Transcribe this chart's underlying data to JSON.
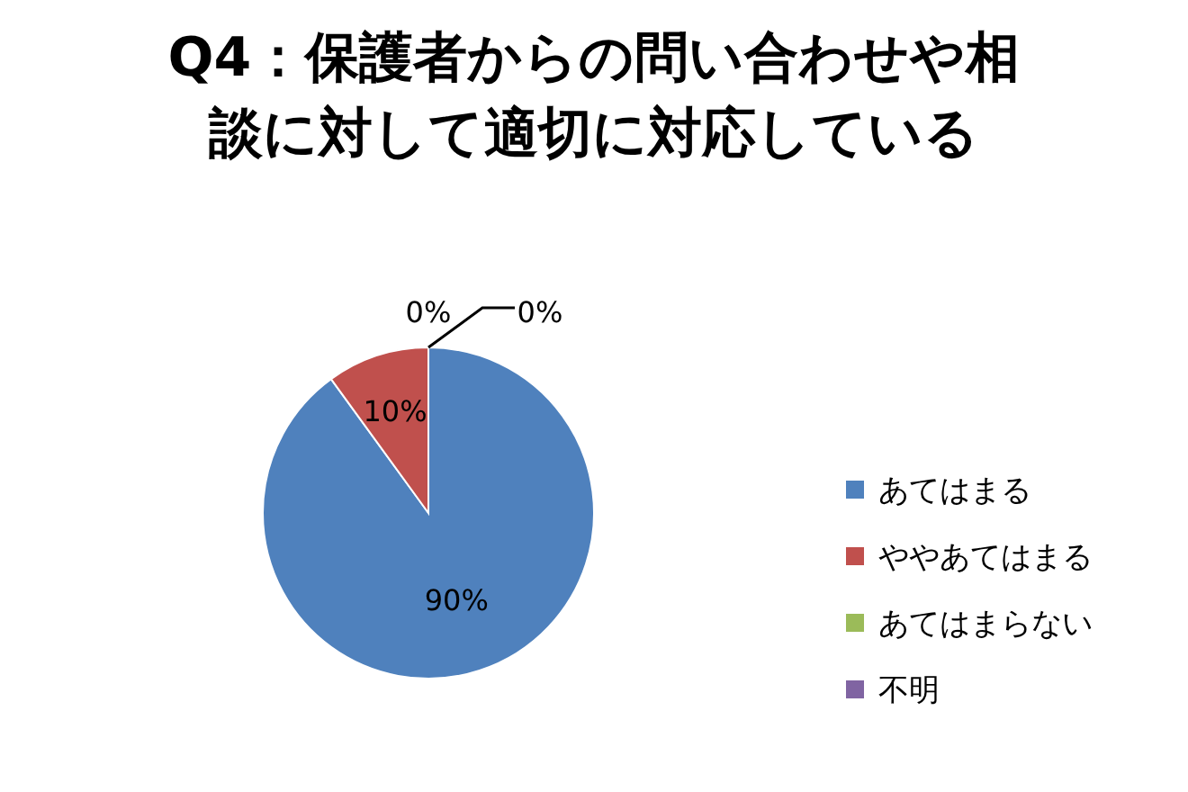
{
  "chart_data": {
    "type": "pie",
    "title": "Q4：保護者からの問い合わせや相談に対して適切に対応している",
    "categories": [
      "あてはまる",
      "ややあてはまる",
      "あてはまらない",
      "不明"
    ],
    "values": [
      90,
      10,
      0,
      0
    ],
    "colors": [
      "#4f81bd",
      "#c0504d",
      "#9bbb59",
      "#8064a2"
    ],
    "value_labels": [
      "90%",
      "10%",
      "0%",
      "0%"
    ],
    "legend": "right"
  }
}
